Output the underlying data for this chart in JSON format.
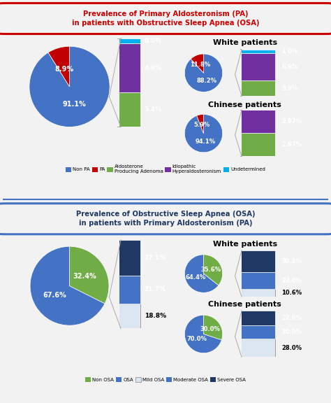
{
  "bg_color": "#f2f2f2",
  "title1": "Prevalence of Primary Aldosteronism (PA)\nin patients with Obstructive Sleep Apnea (OSA)",
  "title2": "Prevalence of Obstructive Sleep Apnea (OSA)\nin patients with Primary Aldosteronism (PA)",
  "title1_color": "#cc0000",
  "title2_color": "#1f3864",
  "title1_edge": "#cc0000",
  "title2_edge": "#4472c4",
  "title_face": "#f2f2f2",
  "pa_main_pie": [
    91.1,
    8.9
  ],
  "pa_main_colors": [
    "#4472c4",
    "#c00000"
  ],
  "pa_main_labels": [
    "91.1%",
    "8.9%"
  ],
  "pa_main_label_angles": [
    180,
    340
  ],
  "pa_bar_values": [
    3.4,
    4.9,
    0.5
  ],
  "pa_bar_colors": [
    "#70ad47",
    "#7030a0",
    "#00b0f0"
  ],
  "pa_bar_labels": [
    "3.4%",
    "4.9%",
    "0.5%"
  ],
  "pa_white_pie": [
    88.2,
    11.8
  ],
  "pa_white_colors": [
    "#4472c4",
    "#c00000"
  ],
  "pa_white_labels": [
    "88.2%",
    "11.8%"
  ],
  "pa_white_bar": [
    3.9,
    6.9,
    1.0
  ],
  "pa_white_bar_colors": [
    "#70ad47",
    "#7030a0",
    "#00b0f0"
  ],
  "pa_white_bar_labels": [
    "3.9%",
    "6.9%",
    "1.0%"
  ],
  "pa_chinese_pie": [
    94.1,
    5.9
  ],
  "pa_chinese_colors": [
    "#4472c4",
    "#c00000"
  ],
  "pa_chinese_labels": [
    "94.1%",
    "5.9%"
  ],
  "pa_chinese_bar": [
    2.97,
    2.97
  ],
  "pa_chinese_bar_colors": [
    "#70ad47",
    "#7030a0"
  ],
  "pa_chinese_bar_labels": [
    "2.97%",
    "2.97%"
  ],
  "legend1_items": [
    "Non PA",
    "PA",
    "Aldosterone\nProducing Adenoma",
    "Idiopathic\nHyperaldosteronism",
    "Undetermined"
  ],
  "legend1_colors": [
    "#4472c4",
    "#c00000",
    "#70ad47",
    "#7030a0",
    "#00b0f0"
  ],
  "osa_main_pie": [
    32.4,
    67.6
  ],
  "osa_main_colors": [
    "#70ad47",
    "#4472c4"
  ],
  "osa_main_labels": [
    "32.4%",
    "67.6%"
  ],
  "osa_bar_values": [
    18.8,
    21.7,
    27.1
  ],
  "osa_bar_colors": [
    "#dce6f1",
    "#4472c4",
    "#1f3864"
  ],
  "osa_bar_labels": [
    "18.8%",
    "21.7%",
    "27.1%"
  ],
  "osa_white_pie": [
    35.6,
    64.4
  ],
  "osa_white_colors": [
    "#70ad47",
    "#4472c4"
  ],
  "osa_white_labels": [
    "35.6%",
    "64.4%"
  ],
  "osa_white_bar": [
    10.6,
    23.0,
    30.8
  ],
  "osa_white_bar_colors": [
    "#dce6f1",
    "#4472c4",
    "#1f3864"
  ],
  "osa_white_bar_labels": [
    "10.6%",
    "23.0%",
    "30.8%"
  ],
  "osa_chinese_pie": [
    30.0,
    70.0
  ],
  "osa_chinese_colors": [
    "#70ad47",
    "#4472c4"
  ],
  "osa_chinese_labels": [
    "30.0%",
    "70.0%"
  ],
  "osa_chinese_bar": [
    28.0,
    20.0,
    22.0
  ],
  "osa_chinese_bar_colors": [
    "#dce6f1",
    "#4472c4",
    "#1f3864"
  ],
  "osa_chinese_bar_labels": [
    "28.0%",
    "20.0%",
    "22.0%"
  ],
  "legend2_items": [
    "Non OSA",
    "OSA",
    "Mild OSA",
    "Moderate OSA",
    "Severe OSA"
  ],
  "legend2_colors": [
    "#70ad47",
    "#4472c4",
    "#dce6f1",
    "#4472c4",
    "#1f3864"
  ]
}
